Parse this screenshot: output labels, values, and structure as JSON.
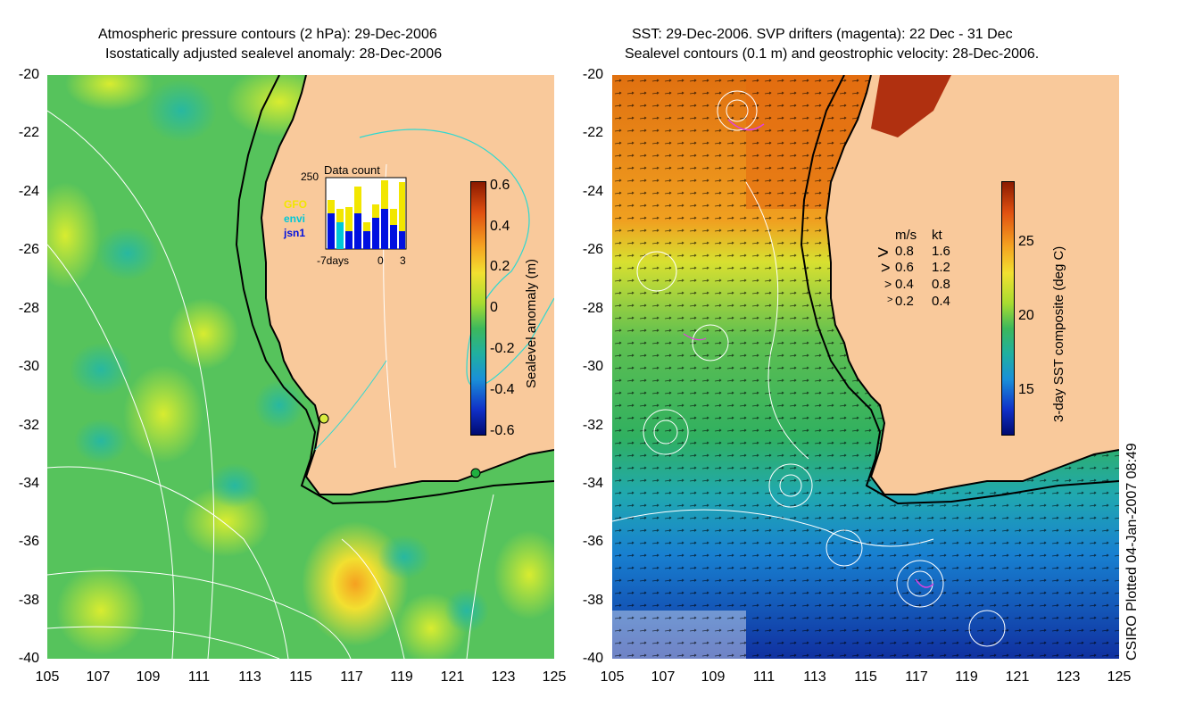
{
  "left_panel": {
    "title_line1": "Atmospheric pressure contours (2 hPa): 29-Dec-2006",
    "title_line2": "Isostatically adjusted sealevel anomaly: 28-Dec-2006",
    "y_ticks": [
      "-20",
      "-22",
      "-24",
      "-26",
      "-28",
      "-30",
      "-32",
      "-34",
      "-36",
      "-38",
      "-40"
    ],
    "x_ticks": [
      "105",
      "107",
      "109",
      "111",
      "113",
      "115",
      "117",
      "119",
      "121",
      "123",
      "125"
    ],
    "colorbar": {
      "label": "Sealevel anomaly (m)",
      "ticks": [
        "0.6",
        "0.4",
        "0.2",
        "0",
        "-0.2",
        "-0.4",
        "-0.6"
      ]
    },
    "inset": {
      "title": "Data count",
      "ymax": "250",
      "x_labels": [
        "-7days",
        "0",
        "3"
      ],
      "legend": [
        "GFO",
        "envi",
        "jsn1"
      ],
      "legend_colors": [
        "#f2e600",
        "#00c8d8",
        "#0010e0"
      ]
    }
  },
  "right_panel": {
    "title_line1": "SST: 29-Dec-2006. SVP drifters (magenta): 22 Dec - 31 Dec",
    "title_line2": "Sealevel contours (0.1 m) and geostrophic velocity: 28-Dec-2006.",
    "y_ticks": [
      "-20",
      "-22",
      "-24",
      "-26",
      "-28",
      "-30",
      "-32",
      "-34",
      "-36",
      "-38",
      "-40"
    ],
    "x_ticks": [
      "105",
      "107",
      "109",
      "111",
      "113",
      "115",
      "117",
      "119",
      "121",
      "123",
      "125"
    ],
    "colorbar": {
      "label": "3-day SST composite (deg C)",
      "ticks": [
        "25",
        "20",
        "15"
      ]
    },
    "velocity_legend": {
      "header_ms": "m/s",
      "header_kt": "kt",
      "rows": [
        {
          "ms": "0.8",
          "kt": "1.6"
        },
        {
          "ms": "0.6",
          "kt": "1.2"
        },
        {
          "ms": "0.4",
          "kt": "0.8"
        },
        {
          "ms": "0.2",
          "kt": "0.4"
        }
      ]
    }
  },
  "footer_credit": "CSIRO Plotted 04-Jan-2007 08:49",
  "colors": {
    "land": "#f9c99b",
    "sla_mid": "#5cc85a",
    "sst_warm": "#e07a10",
    "sst_cool": "#1a8fd0"
  }
}
